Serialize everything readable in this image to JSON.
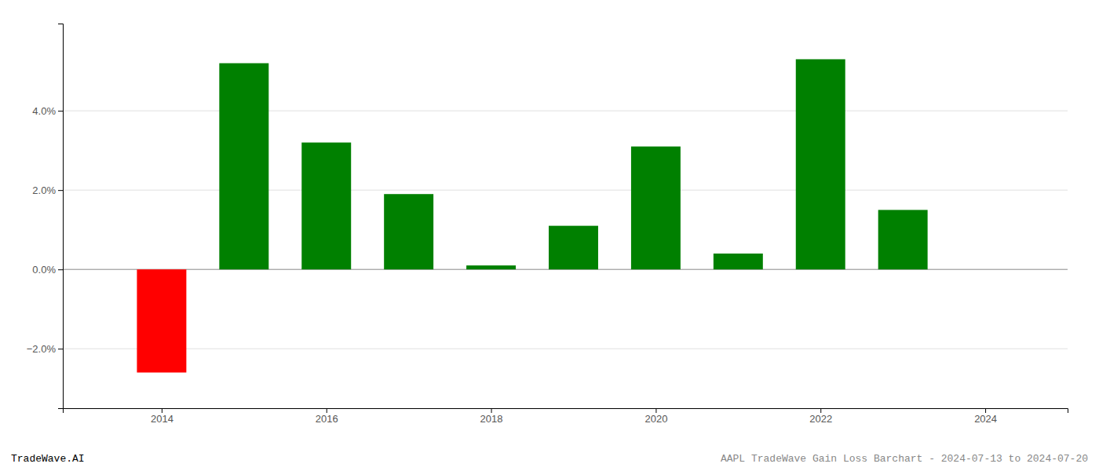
{
  "chart_data": {
    "type": "bar",
    "x": [
      2014,
      2015,
      2016,
      2017,
      2018,
      2019,
      2020,
      2021,
      2022,
      2023
    ],
    "values": [
      -0.026,
      0.052,
      0.032,
      0.019,
      0.001,
      0.011,
      0.031,
      0.004,
      0.053,
      0.015
    ],
    "colors": [
      "#ff0000",
      "#008000",
      "#008000",
      "#008000",
      "#008000",
      "#008000",
      "#008000",
      "#008000",
      "#008000",
      "#008000"
    ],
    "xlim": [
      2012.8,
      2025.0
    ],
    "xticks": [
      2014,
      2016,
      2018,
      2020,
      2022,
      2024
    ],
    "ylim": [
      -0.035,
      0.062
    ],
    "yticks": [
      {
        "value": -0.02,
        "label": "−2.0%"
      },
      {
        "value": 0.0,
        "label": "0.0%"
      },
      {
        "value": 0.02,
        "label": "2.0%"
      },
      {
        "value": 0.04,
        "label": "4.0%"
      }
    ],
    "grid": true,
    "annotations": [
      "TradeWave.AI",
      "AAPL TradeWave Gain Loss Barchart - 2024-07-13 to 2024-07-20"
    ]
  }
}
